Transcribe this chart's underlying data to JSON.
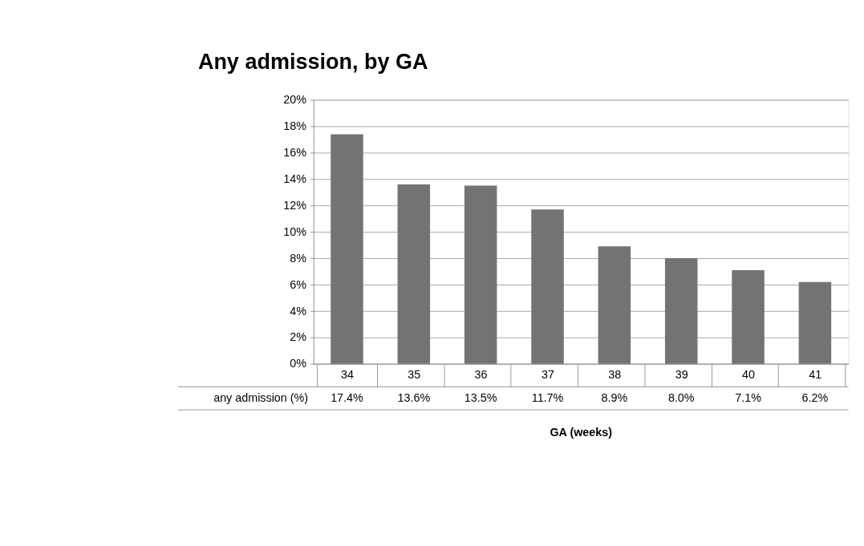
{
  "chart_data": {
    "type": "bar",
    "title": "Any admission, by GA",
    "xlabel": "GA (weeks)",
    "categories": [
      "34",
      "35",
      "36",
      "37",
      "38",
      "39",
      "40",
      "41"
    ],
    "series": [
      {
        "name": "any admission (%)",
        "color": "#737373",
        "values": [
          17.4,
          13.6,
          13.5,
          11.7,
          8.9,
          8.0,
          7.1,
          6.2
        ],
        "value_labels": [
          "17.4%",
          "13.6%",
          "13.5%",
          "11.7%",
          "8.9%",
          "8.0%",
          "7.1%",
          "6.2%"
        ]
      }
    ],
    "ylim": [
      0,
      20
    ],
    "yticks": [
      {
        "value": 0,
        "label": "0%"
      },
      {
        "value": 2,
        "label": "2%"
      },
      {
        "value": 4,
        "label": "4%"
      },
      {
        "value": 6,
        "label": "6%"
      },
      {
        "value": 8,
        "label": "8%"
      },
      {
        "value": 10,
        "label": "10%"
      },
      {
        "value": 12,
        "label": "12%"
      },
      {
        "value": 14,
        "label": "14%"
      },
      {
        "value": 16,
        "label": "16%"
      },
      {
        "value": 18,
        "label": "18%"
      },
      {
        "value": 20,
        "label": "20%"
      }
    ],
    "grid": "y"
  }
}
